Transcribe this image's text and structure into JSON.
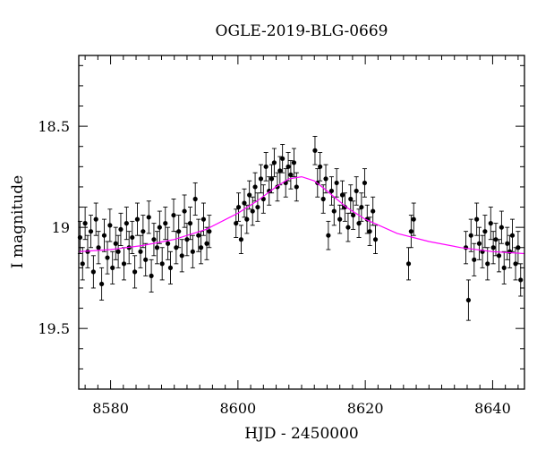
{
  "chart_data": {
    "type": "scatter",
    "title": "OGLE-2019-BLG-0669",
    "xlabel": "HJD - 2450000",
    "ylabel": "I magnitude",
    "xlim": [
      8575,
      8645
    ],
    "ylim": [
      19.8,
      18.15
    ],
    "y_inverted": true,
    "x_ticks": [
      8580,
      8600,
      8620,
      8640
    ],
    "x_tick_labels": [
      "8580",
      "8600",
      "8620",
      "8640"
    ],
    "y_ticks": [
      18.5,
      19,
      19.5
    ],
    "y_tick_labels": [
      "18.5",
      "19",
      "19.5"
    ],
    "grid": false,
    "series": [
      {
        "kind": "points_with_error_bars",
        "color": "#000000",
        "x": [
          8575.2,
          8575.6,
          8576.0,
          8576.4,
          8576.9,
          8577.3,
          8577.7,
          8578.1,
          8578.6,
          8579.0,
          8579.5,
          8579.9,
          8580.3,
          8580.8,
          8581.2,
          8581.6,
          8582.1,
          8582.5,
          8582.9,
          8583.4,
          8583.8,
          8584.2,
          8584.7,
          8585.1,
          8585.5,
          8586.0,
          8586.4,
          8586.8,
          8587.3,
          8587.7,
          8588.1,
          8588.6,
          8589.0,
          8589.4,
          8589.9,
          8590.3,
          8590.7,
          8591.2,
          8591.6,
          8592.0,
          8592.5,
          8592.9,
          8593.3,
          8593.8,
          8594.2,
          8594.6,
          8595.1,
          8595.5,
          8599.7,
          8600.1,
          8600.5,
          8601.0,
          8601.4,
          8601.8,
          8602.3,
          8602.7,
          8603.1,
          8603.6,
          8604.0,
          8604.4,
          8604.9,
          8605.3,
          8605.7,
          8606.2,
          8606.6,
          8607.0,
          8607.5,
          8607.9,
          8608.3,
          8608.8,
          8609.2,
          8612.1,
          8612.5,
          8612.9,
          8613.4,
          8613.8,
          8614.2,
          8614.7,
          8615.1,
          8615.5,
          8616.0,
          8616.4,
          8616.8,
          8617.3,
          8617.7,
          8618.1,
          8618.6,
          8619.0,
          8619.4,
          8619.9,
          8620.3,
          8620.7,
          8621.2,
          8621.6,
          8626.8,
          8627.2,
          8627.6,
          8635.8,
          8636.2,
          8636.6,
          8637.1,
          8637.5,
          8637.9,
          8638.4,
          8638.8,
          8639.2,
          8639.7,
          8640.1,
          8640.5,
          8641.0,
          8641.4,
          8641.8,
          8642.3,
          8642.7,
          8643.1,
          8643.6,
          8644.0,
          8644.4
        ],
        "y": [
          19.05,
          19.18,
          18.98,
          19.12,
          19.02,
          19.22,
          18.96,
          19.1,
          19.28,
          19.04,
          19.15,
          18.99,
          19.2,
          19.08,
          19.12,
          19.01,
          19.18,
          18.98,
          19.1,
          19.05,
          19.22,
          18.96,
          19.12,
          19.02,
          19.16,
          18.95,
          19.24,
          19.06,
          19.1,
          19.0,
          19.18,
          18.98,
          19.08,
          19.2,
          18.94,
          19.1,
          19.02,
          19.14,
          18.92,
          19.06,
          18.98,
          19.12,
          18.86,
          19.04,
          19.1,
          18.96,
          19.08,
          19.02,
          18.98,
          18.9,
          19.06,
          18.88,
          18.96,
          18.84,
          18.92,
          18.8,
          18.9,
          18.76,
          18.86,
          18.7,
          18.82,
          18.76,
          18.68,
          18.8,
          18.72,
          18.66,
          18.78,
          18.7,
          18.74,
          18.68,
          18.8,
          18.62,
          18.78,
          18.7,
          18.86,
          18.76,
          19.04,
          18.82,
          18.92,
          18.78,
          18.96,
          18.84,
          18.9,
          19.0,
          18.86,
          18.94,
          18.82,
          18.98,
          18.9,
          18.78,
          18.96,
          19.02,
          18.92,
          19.06,
          19.18,
          19.02,
          18.96,
          19.1,
          19.36,
          19.04,
          19.16,
          18.96,
          19.08,
          19.12,
          19.02,
          19.18,
          18.98,
          19.1,
          19.06,
          19.14,
          19.0,
          19.2,
          19.08,
          19.12,
          19.04,
          19.18,
          19.1,
          19.26
        ],
        "err": [
          0.08,
          0.08,
          0.08,
          0.08,
          0.08,
          0.08,
          0.08,
          0.08,
          0.08,
          0.08,
          0.08,
          0.08,
          0.08,
          0.08,
          0.08,
          0.08,
          0.08,
          0.08,
          0.08,
          0.08,
          0.08,
          0.08,
          0.08,
          0.08,
          0.08,
          0.08,
          0.08,
          0.08,
          0.08,
          0.08,
          0.08,
          0.08,
          0.08,
          0.08,
          0.08,
          0.08,
          0.08,
          0.08,
          0.08,
          0.08,
          0.08,
          0.08,
          0.08,
          0.08,
          0.08,
          0.08,
          0.08,
          0.08,
          0.07,
          0.07,
          0.07,
          0.07,
          0.07,
          0.07,
          0.07,
          0.07,
          0.07,
          0.07,
          0.07,
          0.07,
          0.07,
          0.07,
          0.07,
          0.07,
          0.07,
          0.07,
          0.07,
          0.07,
          0.07,
          0.07,
          0.07,
          0.07,
          0.07,
          0.07,
          0.07,
          0.07,
          0.07,
          0.07,
          0.07,
          0.07,
          0.07,
          0.07,
          0.07,
          0.07,
          0.07,
          0.07,
          0.07,
          0.07,
          0.07,
          0.07,
          0.07,
          0.07,
          0.07,
          0.07,
          0.08,
          0.08,
          0.08,
          0.08,
          0.1,
          0.08,
          0.08,
          0.08,
          0.08,
          0.08,
          0.08,
          0.08,
          0.08,
          0.08,
          0.08,
          0.08,
          0.08,
          0.08,
          0.08,
          0.08,
          0.08,
          0.08,
          0.08,
          0.08
        ]
      },
      {
        "kind": "model_curve",
        "color": "#ff00ff",
        "peak_x": 8610.0,
        "peak_y": 18.75,
        "baseline_y": 19.13,
        "x": [
          8575,
          8580,
          8585,
          8590,
          8595,
          8600,
          8603,
          8606,
          8608,
          8610,
          8612,
          8614,
          8617,
          8620,
          8625,
          8630,
          8635,
          8640,
          8645
        ],
        "y": [
          19.12,
          19.11,
          19.09,
          19.06,
          19.01,
          18.93,
          18.87,
          18.8,
          18.76,
          18.75,
          18.77,
          18.82,
          18.9,
          18.96,
          19.03,
          19.07,
          19.1,
          19.12,
          19.13
        ]
      }
    ]
  }
}
